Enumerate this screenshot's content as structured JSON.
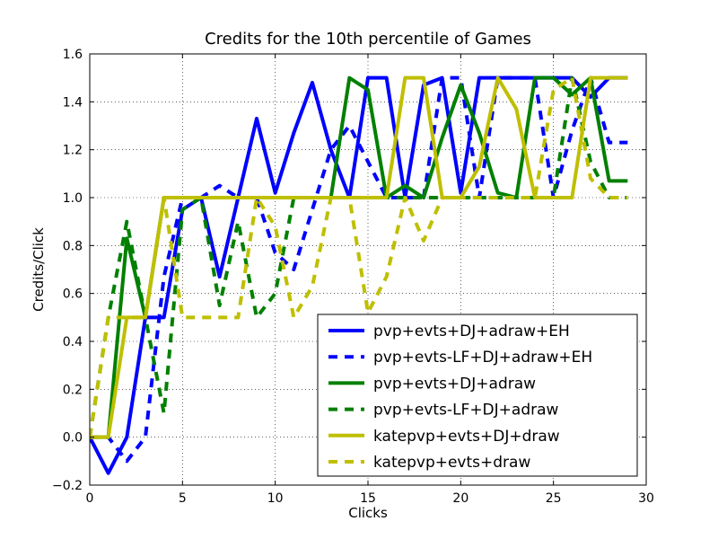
{
  "chart_data": {
    "type": "line",
    "title": "Credits for the 10th percentile of Games",
    "xlabel": "Clicks",
    "ylabel": "Credits/Click",
    "xlim": [
      0,
      30
    ],
    "ylim": [
      -0.2,
      1.6
    ],
    "xticks": [
      0,
      5,
      10,
      15,
      20,
      25,
      30
    ],
    "yticks": [
      -0.2,
      0.0,
      0.2,
      0.4,
      0.6,
      0.8,
      1.0,
      1.2,
      1.4,
      1.6
    ],
    "xtick_labels": [
      "0",
      "5",
      "10",
      "15",
      "20",
      "25",
      "30"
    ],
    "ytick_labels": [
      "−0.2",
      "0.0",
      "0.2",
      "0.4",
      "0.6",
      "0.8",
      "1.0",
      "1.2",
      "1.4",
      "1.6"
    ],
    "grid": true,
    "legend_position": "lower-right",
    "x": [
      0,
      1,
      2,
      3,
      4,
      5,
      6,
      7,
      8,
      9,
      10,
      11,
      12,
      13,
      14,
      15,
      16,
      17,
      18,
      19,
      20,
      21,
      22,
      23,
      24,
      25,
      26,
      27,
      28,
      29
    ],
    "series": [
      {
        "name": "pvp+evts+DJ+adraw+EH",
        "color": "#0000ff",
        "style": "solid",
        "values": [
          0.0,
          -0.15,
          0.0,
          0.5,
          0.5,
          0.95,
          1.0,
          0.67,
          1.0,
          1.33,
          1.02,
          1.27,
          1.48,
          1.2,
          1.0,
          1.5,
          1.5,
          1.0,
          1.47,
          1.5,
          1.02,
          1.5,
          1.5,
          1.5,
          1.5,
          1.5,
          1.5,
          1.42,
          1.5,
          1.5
        ]
      },
      {
        "name": "pvp+evts-LF+DJ+adraw+EH",
        "color": "#0000ff",
        "style": "dashed",
        "values": [
          0.0,
          0.0,
          -0.1,
          0.0,
          0.67,
          1.0,
          1.0,
          1.05,
          1.0,
          1.0,
          0.77,
          0.7,
          0.95,
          1.2,
          1.3,
          1.15,
          1.0,
          1.0,
          1.0,
          1.5,
          1.5,
          1.0,
          1.5,
          1.5,
          1.5,
          1.0,
          1.28,
          1.5,
          1.23,
          1.23
        ]
      },
      {
        "name": "pvp+evts+DJ+adraw",
        "color": "#008000",
        "style": "solid",
        "values": [
          0.0,
          0.0,
          0.83,
          0.5,
          1.0,
          1.0,
          1.0,
          1.0,
          1.0,
          1.0,
          1.0,
          1.0,
          1.0,
          1.0,
          1.5,
          1.45,
          1.0,
          1.05,
          1.0,
          1.25,
          1.47,
          1.27,
          1.02,
          1.0,
          1.5,
          1.5,
          1.43,
          1.5,
          1.07,
          1.07
        ]
      },
      {
        "name": "pvp+evts-LF+DJ+adraw",
        "color": "#008000",
        "style": "dashed",
        "values": [
          0.0,
          0.5,
          0.9,
          0.5,
          0.1,
          0.95,
          1.0,
          0.55,
          0.9,
          0.5,
          0.6,
          1.0,
          1.0,
          1.0,
          1.0,
          1.0,
          1.0,
          1.0,
          1.0,
          1.0,
          1.0,
          1.0,
          1.0,
          1.0,
          1.0,
          1.0,
          1.5,
          1.15,
          1.0,
          1.0
        ]
      },
      {
        "name": "katepvp+evts+DJ+draw",
        "color": "#bfbf00",
        "style": "solid",
        "values": [
          0.0,
          0.0,
          0.5,
          0.5,
          1.0,
          1.0,
          1.0,
          1.0,
          1.0,
          1.0,
          1.0,
          1.0,
          1.0,
          1.0,
          1.0,
          1.0,
          1.0,
          1.5,
          1.5,
          1.0,
          1.0,
          1.13,
          1.5,
          1.37,
          1.0,
          1.0,
          1.0,
          1.5,
          1.5,
          1.5
        ]
      },
      {
        "name": "katepvp+evts+draw",
        "color": "#bfbf00",
        "style": "dashed",
        "values": [
          0.0,
          0.5,
          0.5,
          0.5,
          1.0,
          0.5,
          0.5,
          0.5,
          0.5,
          1.0,
          0.88,
          0.5,
          0.63,
          1.0,
          1.0,
          0.52,
          0.67,
          1.0,
          0.82,
          1.0,
          1.0,
          1.0,
          1.0,
          1.0,
          1.0,
          1.45,
          1.5,
          1.08,
          1.0,
          1.0
        ]
      }
    ]
  }
}
